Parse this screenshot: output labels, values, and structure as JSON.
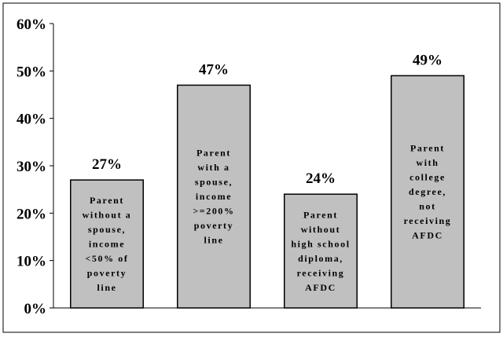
{
  "chart_data": {
    "type": "bar",
    "title": "",
    "xlabel": "",
    "ylabel": "",
    "ylim": [
      0,
      60
    ],
    "yticks": [
      "0%",
      "10%",
      "20%",
      "30%",
      "40%",
      "50%",
      "60%"
    ],
    "categories": [
      [
        "Parent",
        "without a",
        "spouse,",
        "income",
        "<50% of",
        "poverty",
        "line"
      ],
      [
        "Parent",
        "with a",
        "spouse,",
        "income",
        ">=200%",
        "poverty",
        "line"
      ],
      [
        "Parent",
        "without",
        "high school",
        "diploma,",
        "receiving",
        "AFDC"
      ],
      [
        "Parent",
        "with",
        "college",
        "degree,",
        "not",
        "receiving",
        "AFDC"
      ]
    ],
    "values": [
      27,
      47,
      24,
      49
    ],
    "data_labels": [
      "27%",
      "47%",
      "24%",
      "49%"
    ],
    "grid": false,
    "legend": "none",
    "bar_color": "#c0c0c0",
    "frame_color": "#000000"
  }
}
